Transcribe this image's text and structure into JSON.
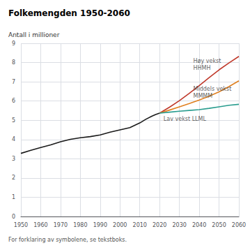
{
  "chart_data": {
    "type": "line",
    "title": "Folkemengden 1950-2060",
    "ylabel": "Antall i millioner",
    "footnote": "For forklaring av symbolene, se tekstboks.",
    "xlim": [
      1950,
      2060
    ],
    "xticks": [
      1950,
      1960,
      1970,
      1980,
      1990,
      2000,
      2010,
      2020,
      2030,
      2040,
      2050,
      2060
    ],
    "ylim": [
      0,
      9
    ],
    "yticks": [
      0,
      1,
      2,
      3,
      4,
      5,
      6,
      7,
      8,
      9
    ],
    "grid": true,
    "series": [
      {
        "color": "#1a1a1a",
        "x": [
          1950,
          1955,
          1960,
          1965,
          1970,
          1975,
          1980,
          1985,
          1990,
          1995,
          2000,
          2005,
          2010,
          2013,
          2016,
          2018,
          2020
        ],
        "values": [
          3.28,
          3.44,
          3.58,
          3.72,
          3.88,
          4.01,
          4.09,
          4.15,
          4.24,
          4.38,
          4.5,
          4.62,
          4.86,
          5.05,
          5.21,
          5.3,
          5.37
        ]
      },
      {
        "color": "#c0392b",
        "x": [
          2020,
          2025,
          2030,
          2035,
          2040,
          2045,
          2050,
          2055,
          2060
        ],
        "values": [
          5.37,
          5.68,
          6.02,
          6.4,
          6.8,
          7.22,
          7.62,
          7.98,
          8.32
        ]
      },
      {
        "color": "#e08020",
        "x": [
          2020,
          2025,
          2030,
          2035,
          2040,
          2045,
          2050,
          2055,
          2060
        ],
        "values": [
          5.37,
          5.53,
          5.7,
          5.87,
          6.05,
          6.25,
          6.48,
          6.75,
          7.05
        ]
      },
      {
        "color": "#2a9d8f",
        "x": [
          2020,
          2025,
          2030,
          2035,
          2040,
          2045,
          2050,
          2055,
          2060
        ],
        "values": [
          5.37,
          5.42,
          5.47,
          5.51,
          5.55,
          5.62,
          5.7,
          5.78,
          5.83
        ]
      }
    ],
    "annotations": [
      {
        "text": "Høy vekst\nHHMH",
        "x": 2037,
        "y": 7.9
      },
      {
        "text": "Middels vekst\nMMMM",
        "x": 2037,
        "y": 6.45
      },
      {
        "text": "Lav vekst LLML",
        "x": 2022,
        "y": 5.08
      }
    ]
  }
}
